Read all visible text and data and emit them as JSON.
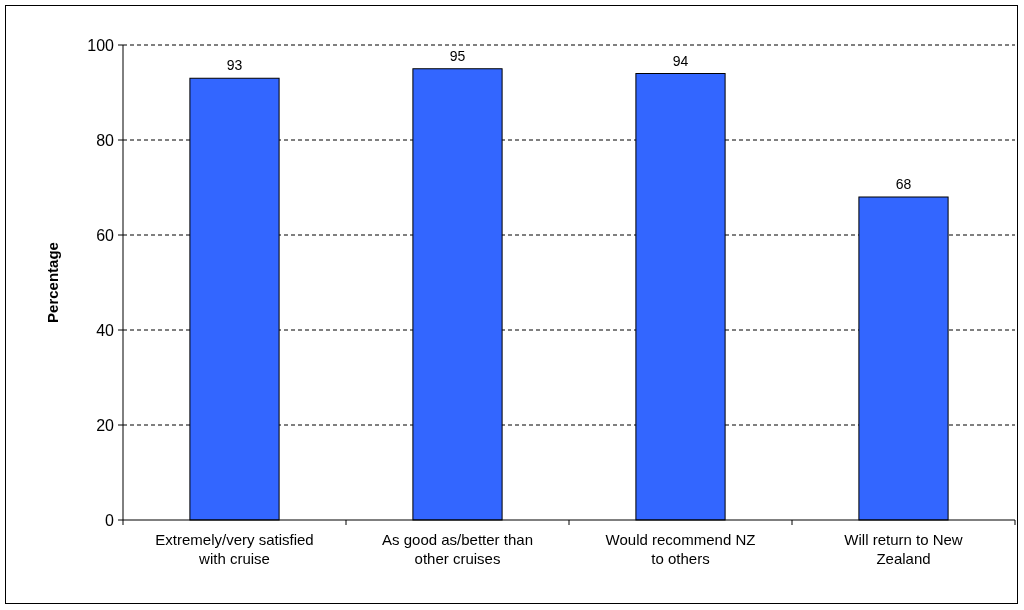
{
  "chart_data": {
    "type": "bar",
    "ylabel": "Percentage",
    "categories": [
      "Extremely/very satisfied\nwith cruise",
      "As good as/better than\nother cruises",
      "Would recommend NZ\nto others",
      "Will return to New\nZealand"
    ],
    "values": [
      93,
      95,
      94,
      68
    ],
    "color": "#3366ff",
    "ylim": [
      0,
      100
    ],
    "yticks": [
      0,
      20,
      40,
      60,
      80,
      100
    ],
    "grid": "y",
    "data_labels": true
  }
}
